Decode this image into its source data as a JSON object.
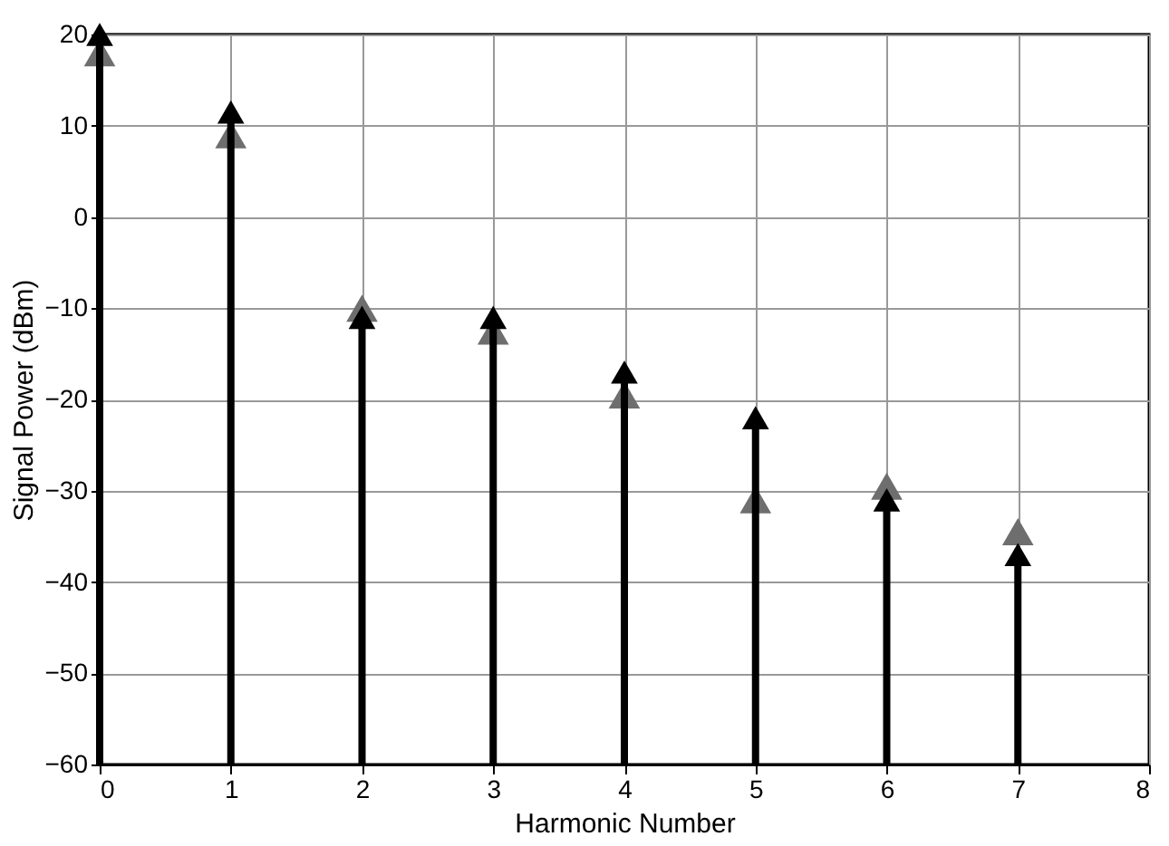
{
  "chart_data": {
    "type": "scatter",
    "xlabel": "Harmonic Number",
    "ylabel": "Signal Power (dBm)",
    "x": [
      0,
      1,
      2,
      3,
      4,
      5,
      6,
      7
    ],
    "series": [
      {
        "color": "#6e6e6e",
        "values": [
          18,
          9,
          -10,
          -12.5,
          -19.5,
          -31,
          -29.5,
          -34.5
        ]
      },
      {
        "color": "#000000",
        "values": [
          20,
          11.5,
          -11,
          -11,
          -17,
          -22,
          -31,
          -37
        ],
        "errors": [
          [
            -60,
            20
          ],
          [
            -60,
            11.5
          ],
          [
            -60,
            -11
          ],
          [
            -60,
            -11
          ],
          [
            -60,
            -17
          ],
          [
            -60,
            -22
          ],
          [
            -60,
            -31
          ],
          [
            -60,
            -37
          ]
        ]
      }
    ],
    "xlim": [
      0,
      8
    ],
    "xticks": [
      0,
      1,
      2,
      3,
      4,
      5,
      6,
      7,
      8
    ],
    "ylim": [
      -60,
      20
    ],
    "yticks": [
      -60,
      -50,
      -40,
      -30,
      -20,
      -10,
      0,
      10,
      20
    ],
    "grid": true,
    "marker": "triangle"
  }
}
